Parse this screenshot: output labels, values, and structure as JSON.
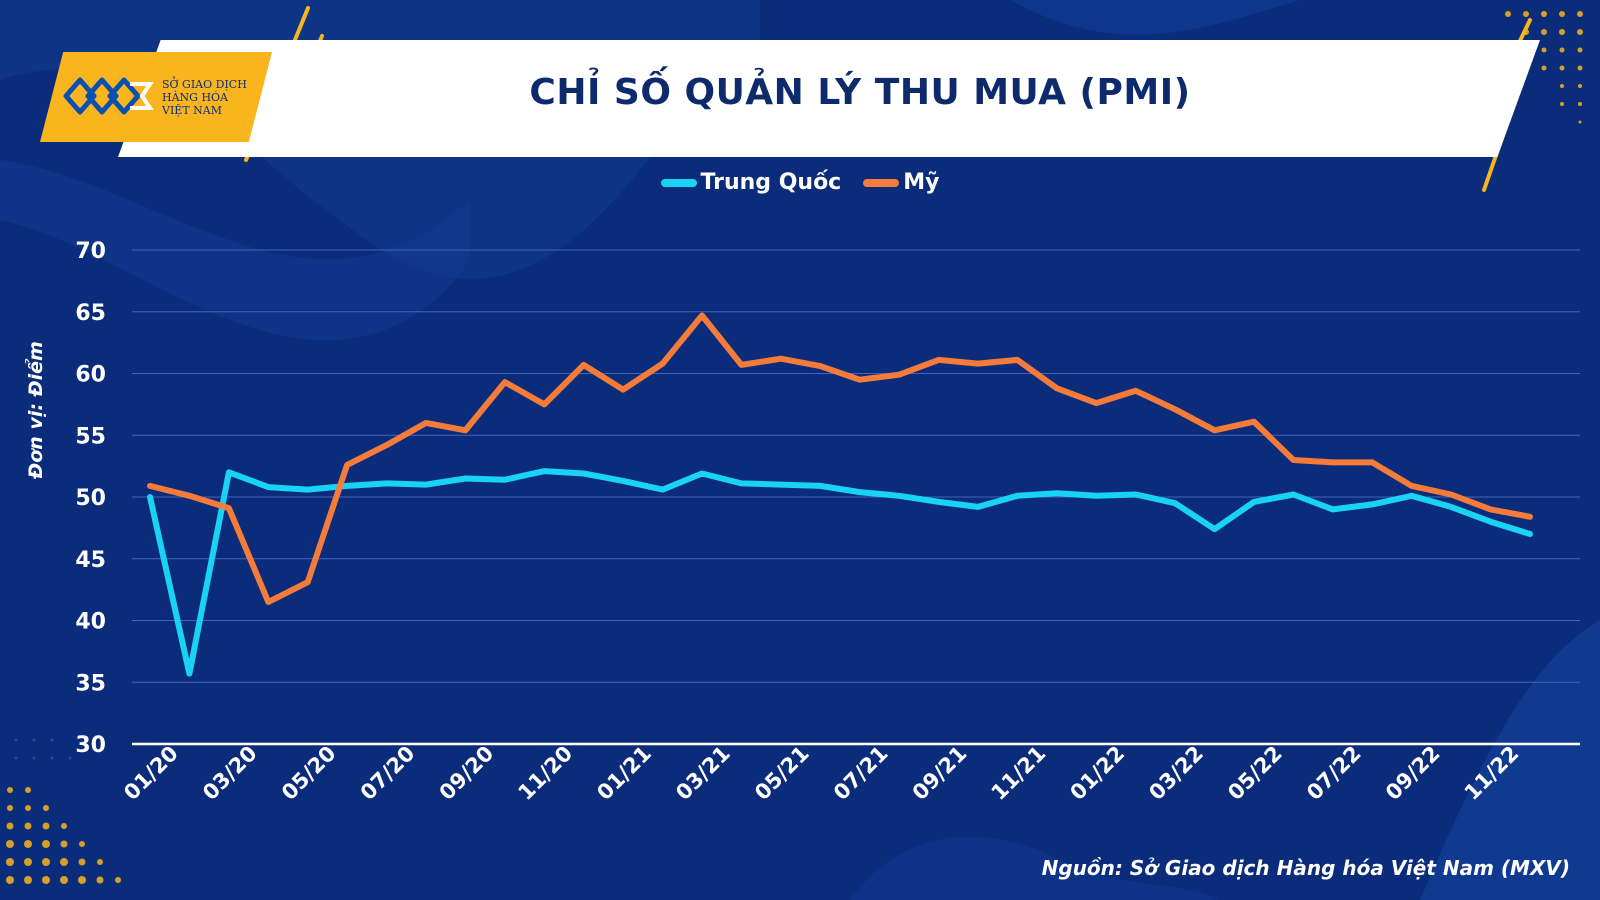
{
  "header": {
    "title": "CHỈ SỐ QUẢN LÝ THU MUA (PMI)",
    "logo_lines": [
      "SỞ GIAO DỊCH",
      "HÀNG HÓA",
      "VIỆT NAM"
    ]
  },
  "colors": {
    "background": "#0b2c7a",
    "accent_yellow": "#f8b51d",
    "china_series": "#19d3f5",
    "us_series": "#f47b3a"
  },
  "axis": {
    "ylabel": "Đơn vị: Điểm"
  },
  "source": "Nguồn: Sở Giao dịch Hàng hóa Việt Nam (MXV)",
  "chart_data": {
    "type": "line",
    "title": "CHỈ SỐ QUẢN LÝ THU MUA (PMI)",
    "ylabel": "Đơn vị: Điểm",
    "xlabel": "",
    "ylim": [
      30,
      70
    ],
    "yticks": [
      30,
      35,
      40,
      45,
      50,
      55,
      60,
      65,
      70
    ],
    "grid": true,
    "legend_position": "top-center",
    "x": [
      "01/20",
      "02/20",
      "03/20",
      "04/20",
      "05/20",
      "06/20",
      "07/20",
      "08/20",
      "09/20",
      "10/20",
      "11/20",
      "12/20",
      "01/21",
      "02/21",
      "03/21",
      "04/21",
      "05/21",
      "06/21",
      "07/21",
      "08/21",
      "09/21",
      "10/21",
      "11/21",
      "12/21",
      "01/22",
      "02/22",
      "03/22",
      "04/22",
      "05/22",
      "06/22",
      "07/22",
      "08/22",
      "09/22",
      "10/22",
      "11/22",
      "12/22"
    ],
    "xtick_labels": [
      "01/20",
      "03/20",
      "05/20",
      "07/20",
      "09/20",
      "11/20",
      "01/21",
      "03/21",
      "05/21",
      "07/21",
      "09/21",
      "11/21",
      "01/22",
      "03/22",
      "05/22",
      "07/22",
      "09/22",
      "11/22"
    ],
    "series": [
      {
        "name": "Trung Quốc",
        "color": "#19d3f5",
        "values": [
          50.0,
          35.7,
          52.0,
          50.8,
          50.6,
          50.9,
          51.1,
          51.0,
          51.5,
          51.4,
          52.1,
          51.9,
          51.3,
          50.6,
          51.9,
          51.1,
          51.0,
          50.9,
          50.4,
          50.1,
          49.6,
          49.2,
          50.1,
          50.3,
          50.1,
          50.2,
          49.5,
          47.4,
          49.6,
          50.2,
          49.0,
          49.4,
          50.1,
          49.2,
          48.0,
          47.0
        ]
      },
      {
        "name": "Mỹ",
        "color": "#f47b3a",
        "values": [
          50.9,
          50.1,
          49.1,
          41.5,
          43.1,
          52.6,
          54.2,
          56.0,
          55.4,
          59.3,
          57.5,
          60.7,
          58.7,
          60.8,
          64.7,
          60.7,
          61.2,
          60.6,
          59.5,
          59.9,
          61.1,
          60.8,
          61.1,
          58.8,
          57.6,
          58.6,
          57.1,
          55.4,
          56.1,
          53.0,
          52.8,
          52.8,
          50.9,
          50.2,
          49.0,
          48.4
        ]
      }
    ]
  }
}
